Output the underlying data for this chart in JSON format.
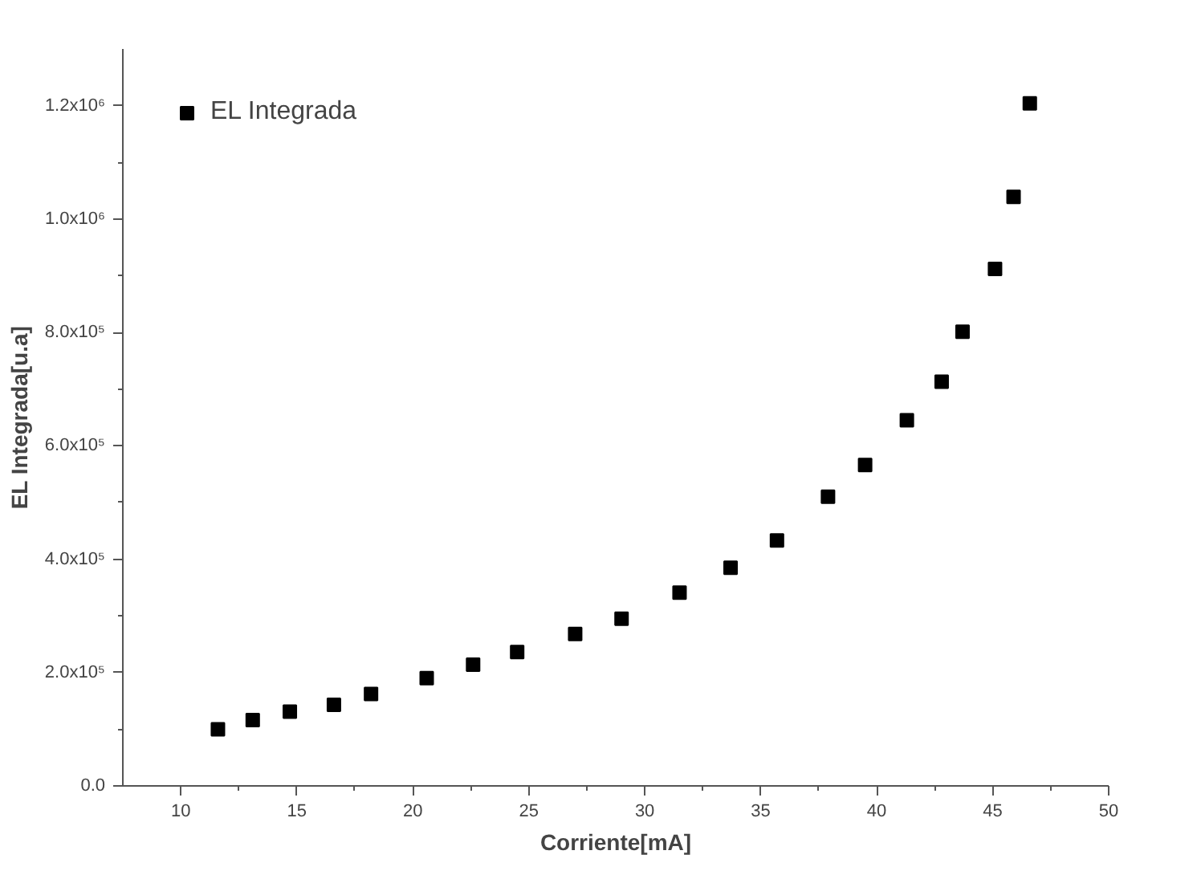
{
  "chart_data": {
    "type": "scatter",
    "xlabel": "Corriente[mA]",
    "ylabel": "EL Integrada[u.a]",
    "x": [
      11.6,
      13.1,
      14.7,
      16.6,
      18.2,
      20.6,
      22.6,
      24.5,
      27.0,
      29.0,
      31.5,
      33.7,
      35.7,
      37.9,
      39.5,
      41.3,
      42.8,
      43.7,
      45.1,
      45.9,
      46.6
    ],
    "series": [
      {
        "name": "EL Integrada",
        "color": "#000000",
        "values": [
          100000,
          116000,
          131000,
          143000,
          162000,
          190000,
          214000,
          236000,
          268000,
          295000,
          341000,
          385000,
          433000,
          510000,
          566000,
          645000,
          713000,
          801000,
          912000,
          1039000,
          1204000
        ]
      }
    ],
    "xlim": [
      7.5,
      50
    ],
    "ylim": [
      0,
      1300000
    ],
    "xticks": [
      10,
      15,
      20,
      25,
      30,
      35,
      40,
      45,
      50
    ],
    "yticks": [
      {
        "value": 0,
        "label": "0.0"
      },
      {
        "value": 200000,
        "label": "2.0x10⁵"
      },
      {
        "value": 400000,
        "label": "4.0x10⁵"
      },
      {
        "value": 600000,
        "label": "6.0x10⁵"
      },
      {
        "value": 800000,
        "label": "8.0x10⁵"
      },
      {
        "value": 1000000,
        "label": "1.0x10⁶"
      },
      {
        "value": 1200000,
        "label": "1.2x10⁶"
      }
    ],
    "marker": "square",
    "legend": "top left",
    "grid": false
  }
}
